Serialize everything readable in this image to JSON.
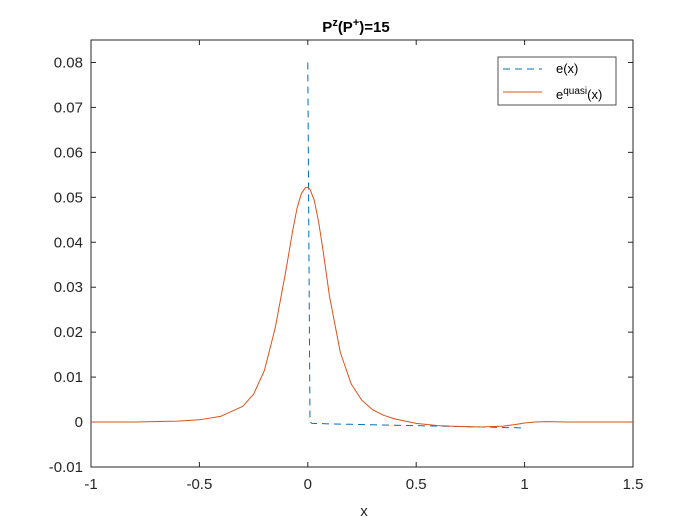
{
  "chart_data": {
    "type": "line",
    "title": {
      "base": "P",
      "sup1": "z",
      "middle": "(P",
      "sup2": "+",
      "end": ")=15"
    },
    "xlabel": "x",
    "ylabel": "",
    "xlim": [
      -1,
      1.5
    ],
    "ylim": [
      -0.01,
      0.085
    ],
    "xticks": [
      -1,
      -0.5,
      0,
      0.5,
      1,
      1.5
    ],
    "xtick_labels": [
      "-1",
      "-0.5",
      "0",
      "0.5",
      "1",
      "1.5"
    ],
    "yticks": [
      -0.01,
      0,
      0.01,
      0.02,
      0.03,
      0.04,
      0.05,
      0.06,
      0.07,
      0.08
    ],
    "ytick_labels": [
      "-0.01",
      "0",
      "0.01",
      "0.02",
      "0.03",
      "0.04",
      "0.05",
      "0.06",
      "0.07",
      "0.08"
    ],
    "grid": false,
    "legend_position": "top-right",
    "series": [
      {
        "name": "e(x)",
        "legend": {
          "base": "e(x)",
          "sup": "",
          "after": ""
        },
        "color": "#0072BD",
        "style": "dashed",
        "x": [
          0,
          0,
          0.01,
          0.02,
          0.1,
          0.2,
          0.3,
          0.4,
          0.5,
          0.6,
          0.7,
          0.8,
          0.9,
          1.0
        ],
        "y": [
          0.08,
          0.0795,
          0.0,
          -0.0003,
          -0.0004,
          -0.0005,
          -0.0006,
          -0.0007,
          -0.0008,
          -0.0009,
          -0.001,
          -0.0011,
          -0.0012,
          -0.0013
        ]
      },
      {
        "name": "e quasi (x)",
        "legend": {
          "base": "e",
          "sup": "quasi",
          "after": "(x)"
        },
        "color": "#D95319",
        "style": "solid",
        "x": [
          -1,
          -0.8,
          -0.6,
          -0.5,
          -0.4,
          -0.3,
          -0.25,
          -0.2,
          -0.15,
          -0.1,
          -0.07,
          -0.05,
          -0.03,
          -0.01,
          0,
          0.01,
          0.03,
          0.05,
          0.07,
          0.1,
          0.15,
          0.2,
          0.25,
          0.3,
          0.35,
          0.4,
          0.5,
          0.6,
          0.7,
          0.8,
          0.9,
          0.95,
          1.0,
          1.05,
          1.1,
          1.2,
          1.3,
          1.5
        ],
        "y": [
          0.0,
          0.0,
          0.0002,
          0.0005,
          0.0013,
          0.0035,
          0.0062,
          0.0115,
          0.021,
          0.034,
          0.0425,
          0.0475,
          0.0508,
          0.0522,
          0.0522,
          0.0518,
          0.0493,
          0.0445,
          0.0383,
          0.028,
          0.0155,
          0.0085,
          0.0048,
          0.0027,
          0.0015,
          0.0007,
          -0.0003,
          -0.0008,
          -0.001,
          -0.0011,
          -0.0009,
          -0.0006,
          -0.0002,
          0.0,
          0.0001,
          0.0,
          0.0,
          0.0
        ]
      }
    ]
  }
}
